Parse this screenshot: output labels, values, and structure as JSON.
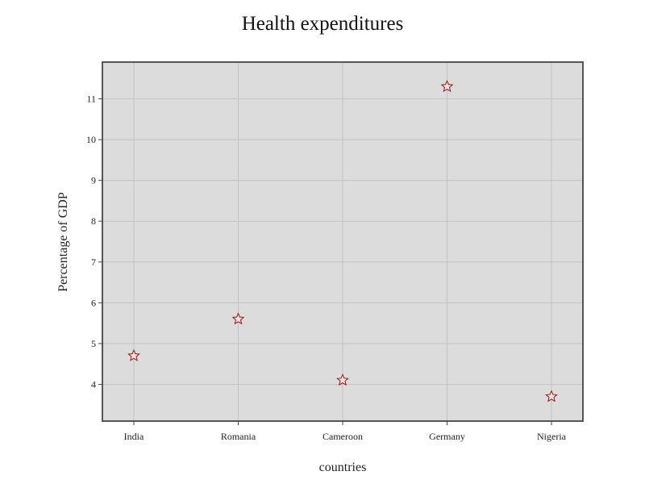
{
  "chart_data": {
    "type": "scatter",
    "title": "Health expenditures",
    "xlabel": "countries",
    "ylabel": "Percentage of GDP",
    "categories": [
      "India",
      "Romania",
      "Cameroon",
      "Germany",
      "Nigeria"
    ],
    "series": [
      {
        "values": [
          4.7,
          5.6,
          4.1,
          11.3,
          3.7
        ]
      }
    ],
    "ylim": [
      3.1,
      11.9
    ],
    "yticks": [
      4,
      5,
      6,
      7,
      8,
      9,
      10,
      11
    ],
    "grid": true,
    "marker": "star",
    "colors": {
      "marker_stroke": "#8b1a1a",
      "marker_fill": "#f4dede",
      "plot_background": "#dcdcdc",
      "grid": "#c2c2c2",
      "frame": "#555555"
    }
  }
}
